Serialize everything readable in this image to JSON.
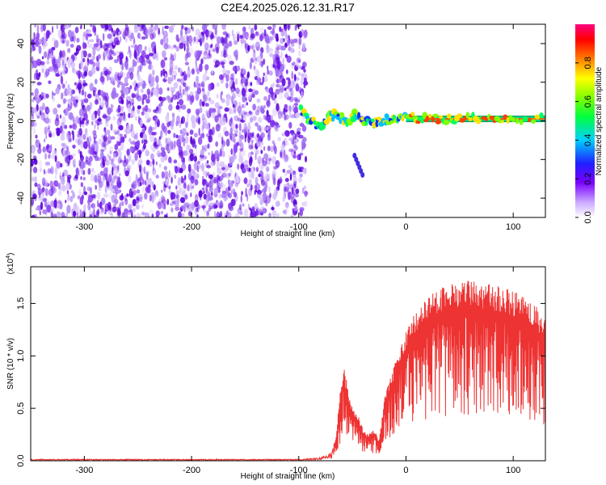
{
  "title": "C2E4.2025.026.12.31.R17",
  "colors": {
    "noise": "#7a2ee8",
    "snr_line": "#ee3333",
    "axis": "#000000"
  },
  "chart_data": [
    {
      "type": "heatmap",
      "title": "C2E4.2025.026.12.31.R17",
      "xlabel": "Height of straight line (km)",
      "ylabel": "Frequency (Hz)",
      "xlim": [
        -350,
        130
      ],
      "ylim": [
        -50,
        50
      ],
      "xticks": [
        -300,
        -200,
        -100,
        0,
        100
      ],
      "yticks": [
        40,
        20,
        0,
        -20,
        -40
      ],
      "xtick_labels": [
        "-300",
        "-200",
        "-100",
        "0",
        "100"
      ],
      "ytick_labels": [
        "40",
        "20",
        "0",
        "-20",
        "-40"
      ],
      "colorbar": {
        "label": "Normalized spectral amplitude",
        "range": [
          0,
          1
        ],
        "ticks": [
          0.0,
          0.2,
          0.4,
          0.6,
          0.8
        ],
        "tick_labels": [
          "0.0",
          "0.2",
          "0.4",
          "0.6",
          "0.8"
        ]
      },
      "noise_region_x": [
        -350,
        -93
      ],
      "signal_track": {
        "x": [
          -98,
          -90,
          -80,
          -72,
          -64,
          -56,
          -48,
          -40,
          -32,
          -24,
          -16,
          -8,
          0,
          10,
          20,
          40,
          60,
          80,
          100,
          130
        ],
        "y": [
          6,
          0,
          -3,
          2,
          4,
          -1,
          3,
          0,
          -1,
          0,
          1,
          1,
          3,
          1,
          1,
          1,
          1,
          1,
          1,
          1
        ]
      }
    },
    {
      "type": "line",
      "xlabel": "Height of straight line (km)",
      "ylabel": "SNR (10 * v/v)",
      "y_multiplier": "(x10^4)",
      "y_multiplier_base": "(x10",
      "y_multiplier_exp": "4",
      "xlim": [
        -350,
        130
      ],
      "ylim": [
        0,
        1.85
      ],
      "xticks": [
        -300,
        -200,
        -100,
        0,
        100
      ],
      "yticks": [
        0.0,
        0.5,
        1.0,
        1.5
      ],
      "xtick_labels": [
        "-300",
        "-200",
        "-100",
        "0",
        "100"
      ],
      "ytick_labels": [
        "0.0",
        "0.5",
        "1.0",
        "1.5"
      ],
      "series": [
        {
          "x": [
            -350,
            -100,
            -80,
            -70,
            -65,
            -62,
            -58,
            -55,
            -50,
            -45,
            -40,
            -35,
            -30,
            -25,
            -20,
            -15,
            -10,
            -5,
            0,
            5,
            10,
            20,
            30,
            40,
            50,
            60,
            70,
            80,
            90,
            100,
            110,
            120,
            130
          ],
          "y": [
            0.01,
            0.01,
            0.02,
            0.05,
            0.25,
            0.6,
            0.9,
            0.75,
            0.5,
            0.45,
            0.3,
            0.25,
            0.3,
            0.2,
            0.6,
            0.8,
            0.95,
            1.1,
            1.25,
            1.35,
            1.45,
            1.55,
            1.65,
            1.7,
            1.72,
            1.72,
            1.7,
            1.68,
            1.65,
            1.62,
            1.6,
            1.5,
            1.35
          ]
        }
      ]
    }
  ]
}
